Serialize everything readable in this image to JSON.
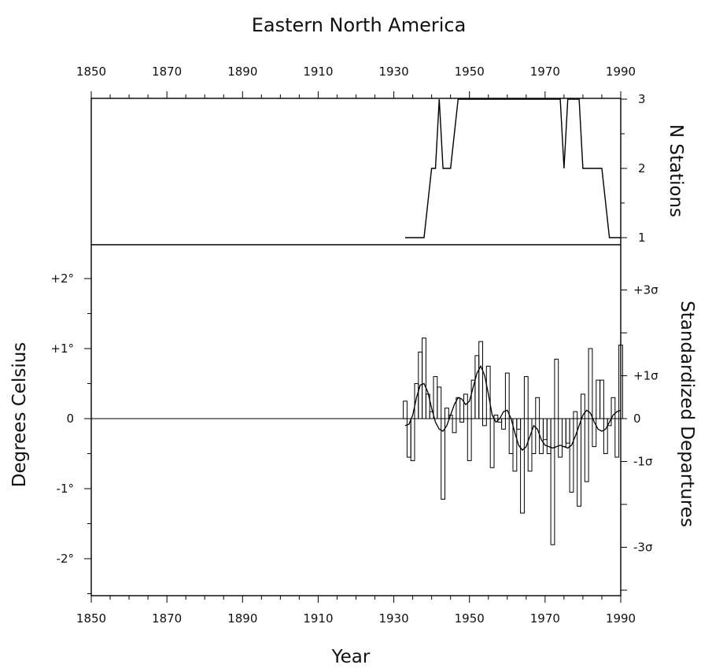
{
  "chart_data": {
    "type": "line",
    "title": "Eastern North America",
    "xlabel": "Year",
    "x_ticks": [
      "1850",
      "1870",
      "1890",
      "1910",
      "1930",
      "1950",
      "1970",
      "1990"
    ],
    "xlim": [
      1850,
      1990
    ],
    "stations_panel": {
      "ylabel": "N Stations",
      "ylim": [
        1,
        3
      ],
      "y_ticks": [
        "1",
        "2",
        "3"
      ],
      "years": [
        1933,
        1938,
        1939,
        1940,
        1941,
        1942,
        1943,
        1944,
        1945,
        1946,
        1947,
        1948,
        1949,
        1950,
        1951,
        1952,
        1953,
        1954,
        1955,
        1956,
        1957,
        1958,
        1959,
        1960,
        1961,
        1962,
        1963,
        1964,
        1965,
        1966,
        1967,
        1968,
        1969,
        1970,
        1971,
        1972,
        1973,
        1974,
        1975,
        1976,
        1977,
        1978,
        1979,
        1980,
        1981,
        1982,
        1983,
        1984,
        1985,
        1986,
        1987,
        1988,
        1989,
        1990
      ],
      "values": [
        1,
        1,
        1.5,
        2,
        2,
        3,
        2,
        2,
        2,
        2.5,
        3,
        3,
        3,
        3,
        3,
        3,
        3,
        3,
        3,
        3,
        3,
        3,
        3,
        3,
        3,
        3,
        3,
        3,
        3,
        3,
        3,
        3,
        3,
        3,
        3,
        3,
        3,
        3,
        2,
        3,
        3,
        3,
        3,
        2,
        2,
        2,
        2,
        2,
        2,
        1.5,
        1,
        1,
        1,
        1
      ]
    },
    "departures_panel": {
      "ylabel": "Degrees Celsius",
      "ylabel_right": "Standardized Departures",
      "ylim": [
        -2.5,
        2.5
      ],
      "y_ticks_left": [
        "+2°",
        "+1°",
        "0",
        "-1°",
        "-2°"
      ],
      "y_ticks_right": [
        "+3σ",
        "+1σ",
        "0",
        "-1σ",
        "-3σ"
      ],
      "years": [
        1933,
        1934,
        1935,
        1936,
        1937,
        1938,
        1939,
        1940,
        1941,
        1942,
        1943,
        1944,
        1945,
        1946,
        1947,
        1948,
        1949,
        1950,
        1951,
        1952,
        1953,
        1954,
        1955,
        1956,
        1957,
        1958,
        1959,
        1960,
        1961,
        1962,
        1963,
        1964,
        1965,
        1966,
        1967,
        1968,
        1969,
        1970,
        1971,
        1972,
        1973,
        1974,
        1975,
        1976,
        1977,
        1978,
        1979,
        1980,
        1981,
        1982,
        1983,
        1984,
        1985,
        1986,
        1987,
        1988,
        1989,
        1990
      ],
      "annual_values": [
        0.25,
        -0.55,
        -0.6,
        0.5,
        0.95,
        1.15,
        0.35,
        0.1,
        0.6,
        0.45,
        -1.15,
        0.15,
        0.05,
        -0.2,
        0.3,
        -0.05,
        0.35,
        -0.6,
        0.55,
        0.9,
        1.1,
        -0.1,
        0.75,
        -0.7,
        0.05,
        -0.05,
        -0.15,
        0.65,
        -0.5,
        -0.75,
        -0.15,
        -1.35,
        0.6,
        -0.75,
        -0.5,
        0.3,
        -0.5,
        -0.3,
        -0.5,
        -1.8,
        0.85,
        -0.55,
        -0.4,
        -0.35,
        -1.05,
        0.1,
        -1.25,
        0.35,
        -0.9,
        1.0,
        -0.4,
        0.55,
        0.55,
        -0.5,
        -0.1,
        0.3,
        -0.55,
        1.05
      ],
      "smoothed_values": [
        -0.1,
        -0.08,
        0.05,
        0.3,
        0.48,
        0.5,
        0.38,
        0.15,
        -0.05,
        -0.15,
        -0.18,
        -0.1,
        0.05,
        0.2,
        0.3,
        0.28,
        0.2,
        0.25,
        0.45,
        0.65,
        0.75,
        0.62,
        0.35,
        0.05,
        -0.05,
        0.0,
        0.1,
        0.12,
        0.0,
        -0.2,
        -0.38,
        -0.45,
        -0.4,
        -0.25,
        -0.1,
        -0.15,
        -0.3,
        -0.38,
        -0.4,
        -0.42,
        -0.4,
        -0.38,
        -0.4,
        -0.42,
        -0.38,
        -0.25,
        -0.1,
        0.05,
        0.12,
        0.08,
        -0.05,
        -0.15,
        -0.18,
        -0.15,
        -0.05,
        0.05,
        0.1,
        0.12
      ]
    }
  }
}
